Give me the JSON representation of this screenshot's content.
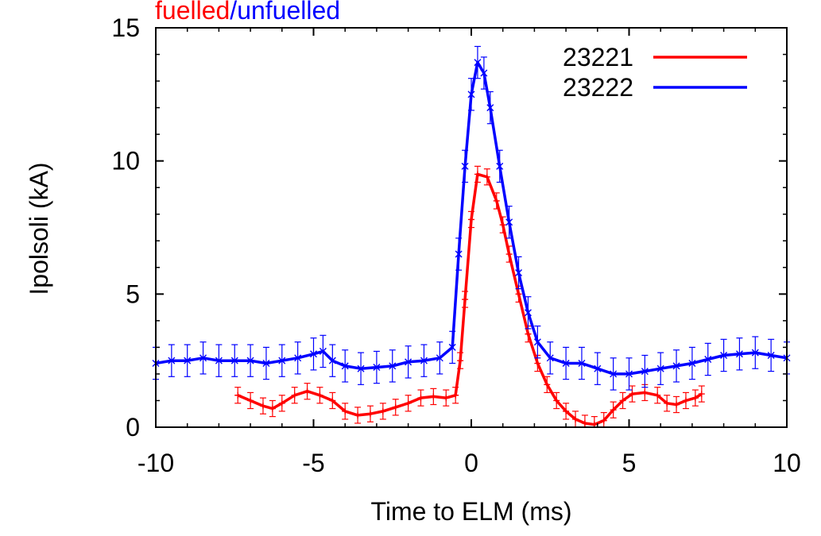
{
  "chart_data": {
    "type": "line",
    "title_parts": [
      {
        "text": "fuelled",
        "color": "#ff0000"
      },
      {
        "text": "/",
        "color": "#0000ff"
      },
      {
        "text": "unfuelled",
        "color": "#0000ff"
      }
    ],
    "xlabel": "Time to ELM (ms)",
    "ylabel": "Ipolsoli (kA)",
    "xlim": [
      -10,
      10
    ],
    "ylim": [
      0,
      15
    ],
    "x_ticks": [
      -10,
      -5,
      0,
      5,
      10
    ],
    "y_ticks": [
      0,
      5,
      10,
      15
    ],
    "grid": false,
    "legend_position": "top-right",
    "series": [
      {
        "name": "23221",
        "color": "#ff0000",
        "marker": "+",
        "x": [
          -7.4,
          -7.0,
          -6.6,
          -6.3,
          -6.0,
          -5.6,
          -5.2,
          -4.8,
          -4.4,
          -4.0,
          -3.6,
          -3.2,
          -2.8,
          -2.4,
          -2.0,
          -1.6,
          -1.2,
          -0.8,
          -0.5,
          -0.35,
          -0.2,
          0.0,
          0.2,
          0.5,
          0.8,
          1.0,
          1.2,
          1.5,
          1.8,
          2.1,
          2.4,
          2.7,
          3.0,
          3.3,
          3.6,
          3.9,
          4.2,
          4.5,
          4.8,
          5.1,
          5.5,
          5.9,
          6.2,
          6.5,
          6.8,
          7.1,
          7.3
        ],
        "y": [
          1.2,
          1.0,
          0.8,
          0.7,
          0.9,
          1.2,
          1.35,
          1.2,
          1.0,
          0.6,
          0.45,
          0.5,
          0.6,
          0.75,
          0.9,
          1.1,
          1.15,
          1.1,
          1.2,
          2.5,
          4.8,
          7.8,
          9.5,
          9.4,
          8.5,
          7.6,
          6.5,
          5.0,
          3.5,
          2.4,
          1.6,
          1.0,
          0.6,
          0.3,
          0.15,
          0.1,
          0.25,
          0.65,
          1.0,
          1.25,
          1.3,
          1.2,
          0.9,
          0.85,
          1.0,
          1.1,
          1.25
        ],
        "error": 0.3
      },
      {
        "name": "23222",
        "color": "#0000ff",
        "marker": "x",
        "x": [
          -10.0,
          -9.5,
          -9.0,
          -8.5,
          -8.0,
          -7.5,
          -7.0,
          -6.5,
          -6.0,
          -5.5,
          -5.0,
          -4.7,
          -4.4,
          -4.0,
          -3.5,
          -3.0,
          -2.5,
          -2.0,
          -1.5,
          -1.0,
          -0.6,
          -0.4,
          -0.2,
          0.0,
          0.2,
          0.4,
          0.6,
          0.9,
          1.2,
          1.5,
          1.8,
          2.1,
          2.5,
          3.0,
          3.5,
          4.0,
          4.5,
          5.0,
          5.5,
          6.0,
          6.5,
          7.0,
          7.5,
          8.0,
          8.5,
          9.0,
          9.5,
          10.0
        ],
        "y": [
          2.4,
          2.5,
          2.5,
          2.6,
          2.5,
          2.5,
          2.5,
          2.4,
          2.5,
          2.6,
          2.75,
          2.85,
          2.5,
          2.3,
          2.2,
          2.25,
          2.3,
          2.45,
          2.5,
          2.6,
          3.0,
          6.5,
          9.8,
          12.5,
          13.7,
          13.3,
          12.0,
          9.8,
          7.7,
          5.8,
          4.3,
          3.2,
          2.6,
          2.4,
          2.4,
          2.2,
          2.0,
          2.0,
          2.1,
          2.2,
          2.3,
          2.4,
          2.55,
          2.7,
          2.75,
          2.8,
          2.7,
          2.6
        ],
        "error": 0.6
      }
    ]
  }
}
